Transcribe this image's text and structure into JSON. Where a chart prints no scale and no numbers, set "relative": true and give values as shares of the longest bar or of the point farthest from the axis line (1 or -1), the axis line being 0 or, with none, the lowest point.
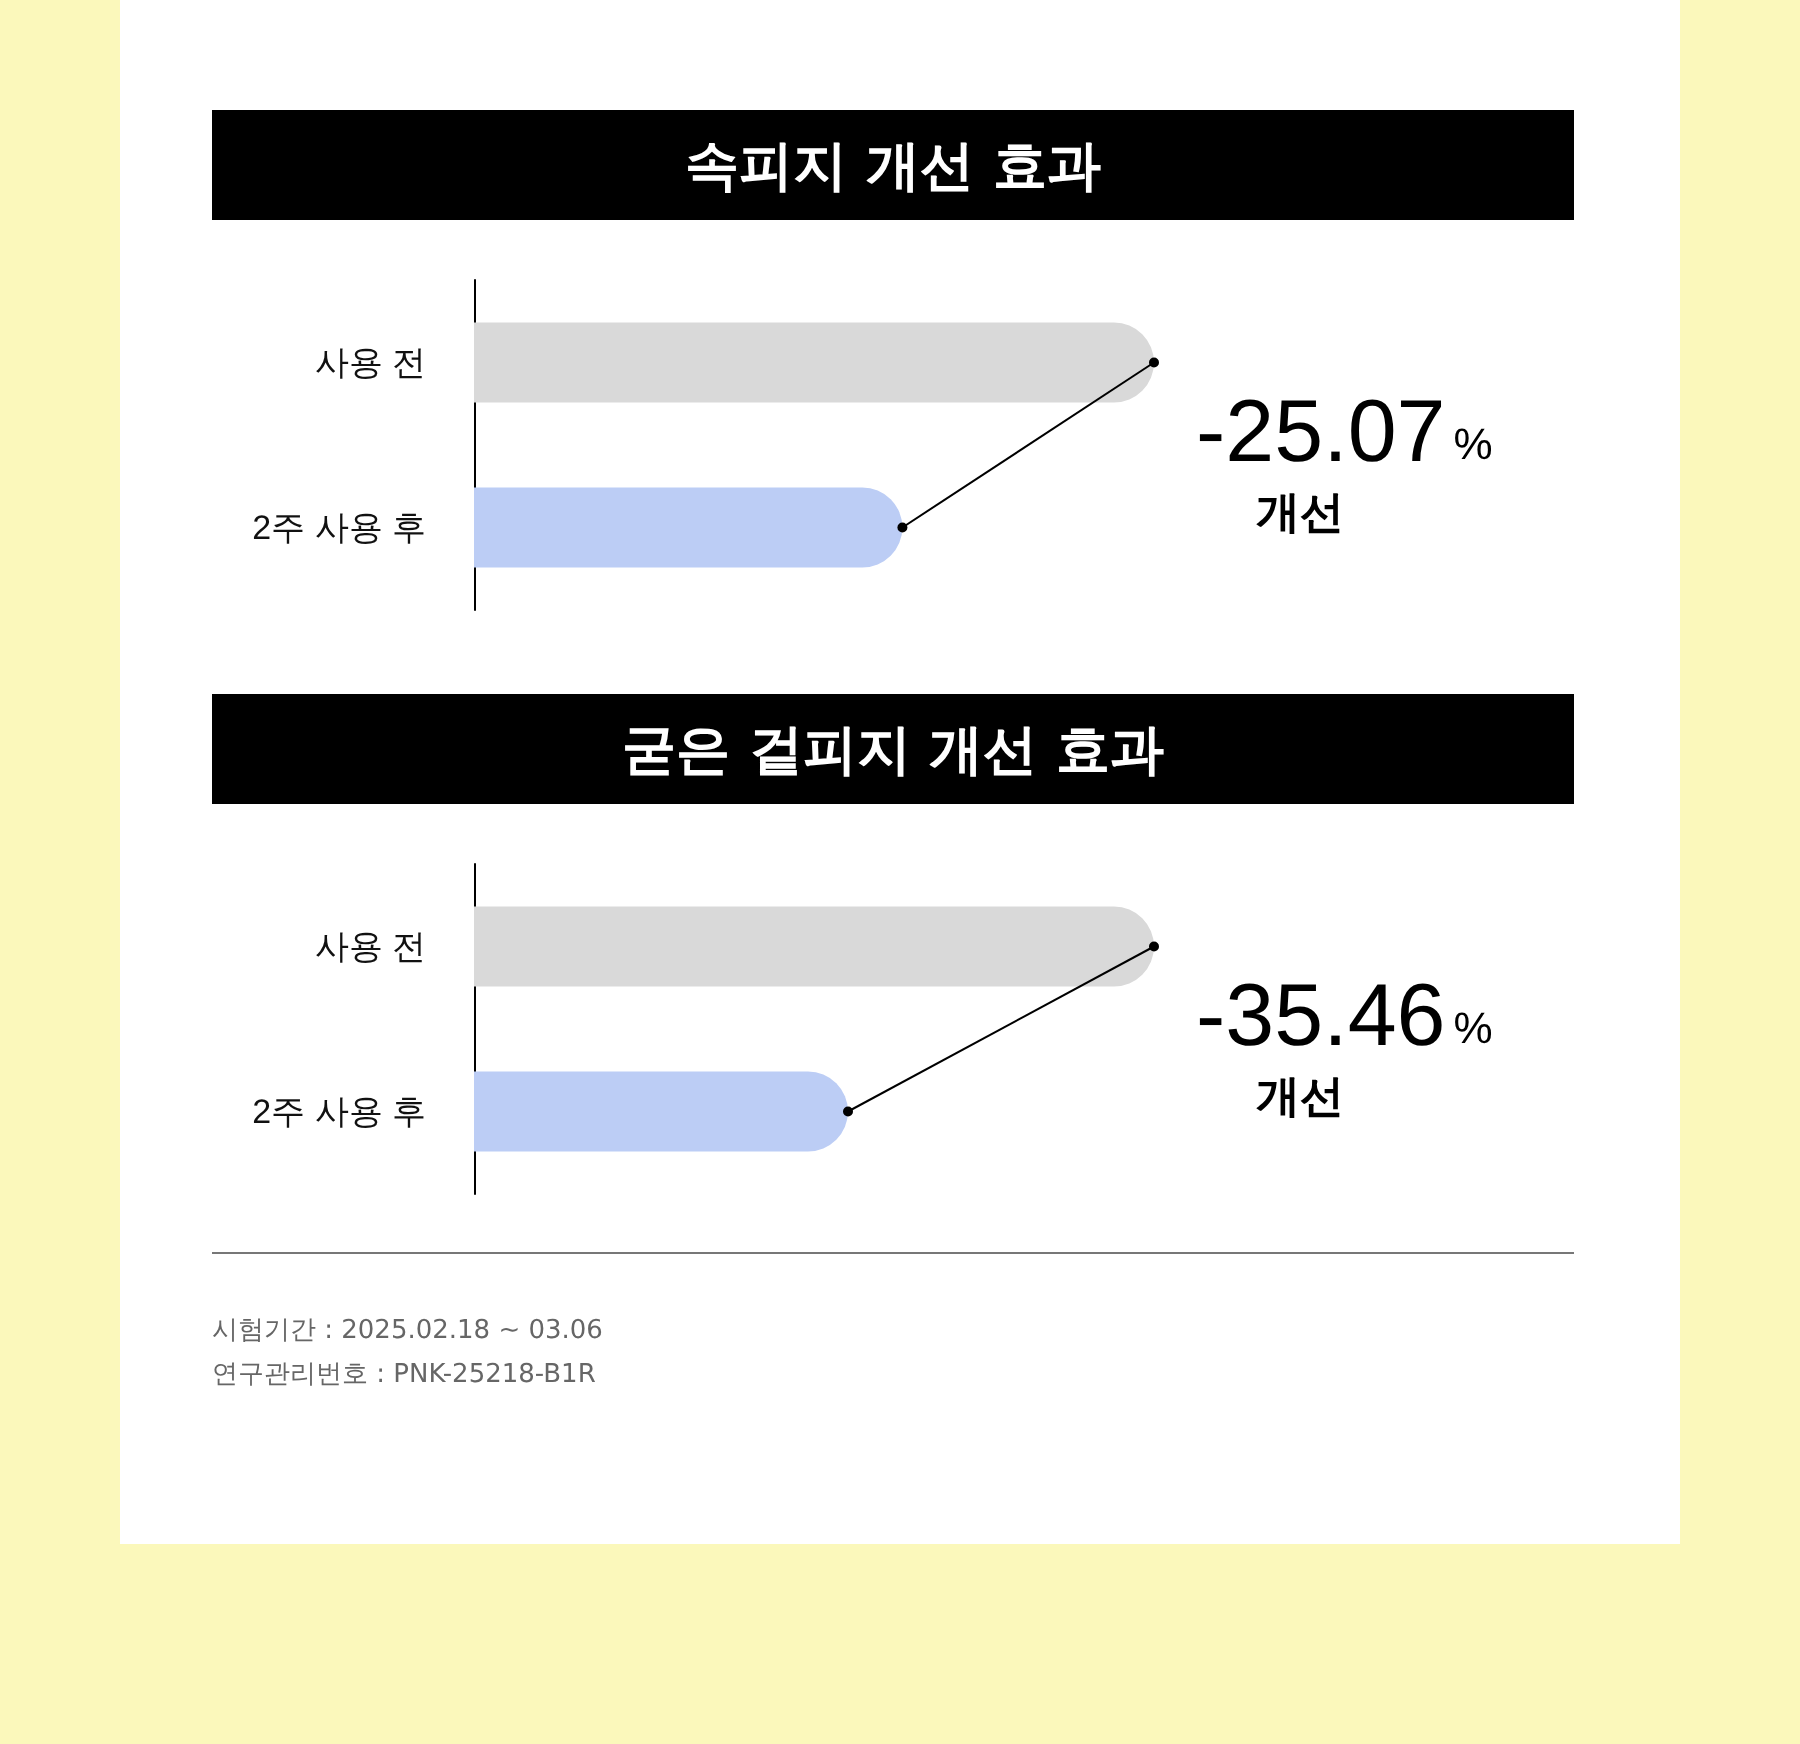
{
  "chart_data": [
    {
      "type": "bar",
      "orientation": "horizontal",
      "relative": true,
      "title": "속피지 개선 효과",
      "categories": [
        "사용 전",
        "2주 사용 후"
      ],
      "values": [
        1,
        0.63
      ],
      "colors": [
        "#d9d9d9",
        "#bccdf5"
      ],
      "annotations": [
        "-25.07%",
        "개선"
      ]
    },
    {
      "type": "bar",
      "orientation": "horizontal",
      "relative": true,
      "title": "굳은 겉피지 개선 효과",
      "categories": [
        "사용 전",
        "2주 사용 후"
      ],
      "values": [
        1,
        0.55
      ],
      "colors": [
        "#d9d9d9",
        "#bccdf5"
      ],
      "annotations": [
        "-35.46%",
        "개선",
        "시험기간 : 2025.02.18 ~ 03.06",
        "연구관리번호 : PNK-25218-B1R"
      ]
    }
  ]
}
